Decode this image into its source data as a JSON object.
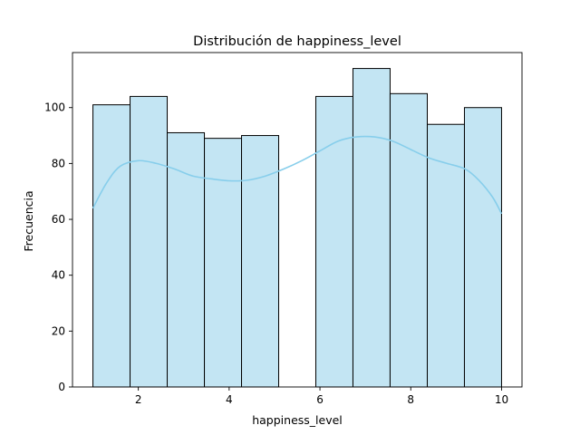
{
  "chart_data": {
    "type": "bar",
    "title": "Distribución de happiness_level",
    "xlabel": "happiness_level",
    "ylabel": "Frecuencia",
    "xlim": [
      0.55,
      10.45
    ],
    "ylim": [
      0,
      119.7
    ],
    "x_ticks": [
      2,
      4,
      6,
      8,
      10
    ],
    "y_ticks": [
      0,
      20,
      40,
      60,
      80,
      100
    ],
    "bins": [
      {
        "x0": 1.0,
        "x1": 1.818,
        "count": 101
      },
      {
        "x0": 1.818,
        "x1": 2.636,
        "count": 104
      },
      {
        "x0": 2.636,
        "x1": 3.455,
        "count": 91
      },
      {
        "x0": 3.455,
        "x1": 4.273,
        "count": 89
      },
      {
        "x0": 4.273,
        "x1": 5.091,
        "count": 90
      },
      {
        "x0": 5.091,
        "x1": 5.909,
        "count": 0
      },
      {
        "x0": 5.909,
        "x1": 6.727,
        "count": 104
      },
      {
        "x0": 6.727,
        "x1": 7.545,
        "count": 114
      },
      {
        "x0": 7.545,
        "x1": 8.364,
        "count": 105
      },
      {
        "x0": 8.364,
        "x1": 9.182,
        "count": 94
      },
      {
        "x0": 9.182,
        "x1": 10.0,
        "count": 100
      }
    ],
    "kde": {
      "x": [
        1.0,
        1.3,
        1.6,
        2.0,
        2.4,
        2.8,
        3.2,
        3.6,
        4.0,
        4.4,
        4.8,
        5.2,
        5.6,
        6.0,
        6.4,
        6.8,
        7.2,
        7.6,
        8.0,
        8.4,
        8.8,
        9.2,
        9.5,
        9.8,
        10.0
      ],
      "y": [
        64,
        73,
        79,
        81,
        80,
        78,
        75.5,
        74.5,
        73.8,
        74,
        75.5,
        78,
        81,
        84.5,
        88,
        89.5,
        89.5,
        88,
        85,
        82,
        80,
        78,
        74,
        68,
        62
      ]
    },
    "bar_color": "#c3e5f3",
    "bar_edge_color": "#000000",
    "kde_color": "#87ceeb",
    "grid": false
  }
}
